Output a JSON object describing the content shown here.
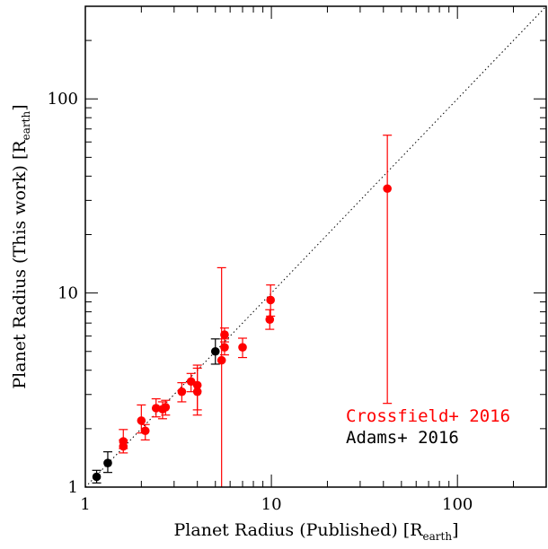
{
  "chart_data": {
    "type": "scatter",
    "xscale": "log",
    "yscale": "log",
    "xlim": [
      1,
      300
    ],
    "ylim": [
      1,
      300
    ],
    "grid": false,
    "xlabel": {
      "main": "Planet Radius (Published) [R",
      "sub": "earth",
      "end": "]"
    },
    "ylabel": {
      "main": "Planet Radius (This work) [R",
      "sub": "earth",
      "end": "]"
    },
    "x_ticks": [
      "1",
      "10",
      "100"
    ],
    "y_ticks": [
      "1",
      "10",
      "100"
    ],
    "reference_line": {
      "style": "dotted",
      "description": "one-to-one",
      "color": "#000000"
    },
    "series": [
      {
        "name": "Crossfield+ 2016",
        "color": "#ff0000",
        "points": [
          {
            "x": 1.6,
            "y": 1.72,
            "lo": 1.58,
            "hi": 1.98
          },
          {
            "x": 1.6,
            "y": 1.62,
            "lo": 1.5,
            "hi": 1.75
          },
          {
            "x": 2.0,
            "y": 2.2,
            "lo": 1.9,
            "hi": 2.65
          },
          {
            "x": 2.1,
            "y": 1.95,
            "lo": 1.75,
            "hi": 2.1
          },
          {
            "x": 2.4,
            "y": 2.55,
            "lo": 2.3,
            "hi": 2.85
          },
          {
            "x": 2.6,
            "y": 2.52,
            "lo": 2.25,
            "hi": 2.75
          },
          {
            "x": 2.7,
            "y": 2.58,
            "lo": 2.35,
            "hi": 2.8
          },
          {
            "x": 3.3,
            "y": 3.1,
            "lo": 2.75,
            "hi": 3.45
          },
          {
            "x": 3.7,
            "y": 3.5,
            "lo": 3.1,
            "hi": 3.85
          },
          {
            "x": 4.0,
            "y": 3.1,
            "lo": 2.5,
            "hi": 4.1
          },
          {
            "x": 4.0,
            "y": 3.35,
            "lo": 2.35,
            "hi": 4.25
          },
          {
            "x": 5.4,
            "y": 4.5,
            "lo": 0.5,
            "hi": 13.5
          },
          {
            "x": 5.6,
            "y": 5.25,
            "lo": 4.8,
            "hi": 5.8
          },
          {
            "x": 5.6,
            "y": 6.1,
            "lo": 5.6,
            "hi": 6.6
          },
          {
            "x": 7.0,
            "y": 5.25,
            "lo": 4.65,
            "hi": 5.85
          },
          {
            "x": 9.8,
            "y": 7.3,
            "lo": 6.5,
            "hi": 8.2
          },
          {
            "x": 9.9,
            "y": 9.2,
            "lo": 7.6,
            "hi": 11.0
          },
          {
            "x": 42.0,
            "y": 34.5,
            "lo": 2.7,
            "hi": 65.0
          }
        ]
      },
      {
        "name": "Adams+ 2016",
        "color": "#000000",
        "points": [
          {
            "x": 1.15,
            "y": 1.13,
            "lo": 1.05,
            "hi": 1.22
          },
          {
            "x": 1.32,
            "y": 1.33,
            "lo": 1.19,
            "hi": 1.52
          },
          {
            "x": 5.0,
            "y": 5.0,
            "lo": 4.3,
            "hi": 5.8
          }
        ]
      }
    ]
  }
}
